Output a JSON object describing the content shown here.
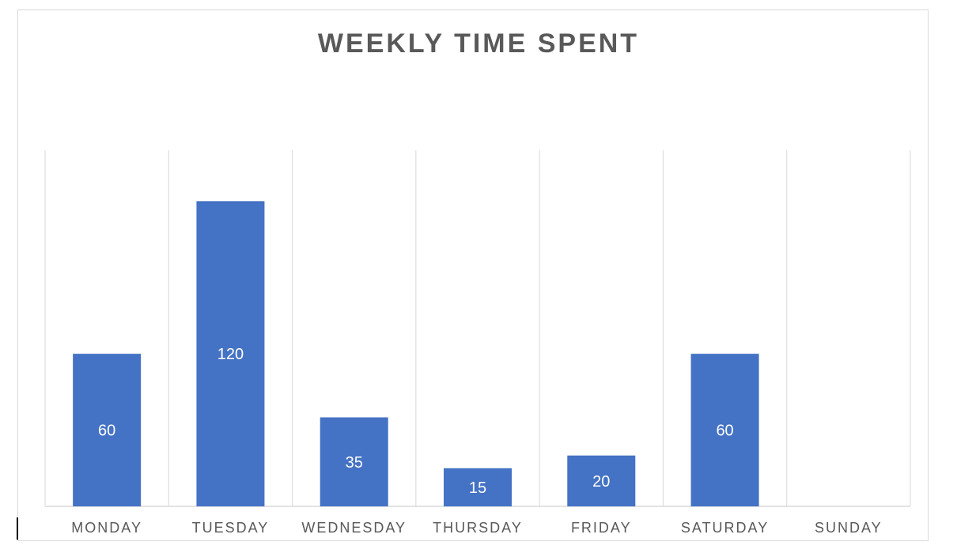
{
  "chart_data": {
    "type": "bar",
    "title": "WEEKLY TIME SPENT",
    "categories": [
      "MONDAY",
      "TUESDAY",
      "WEDNESDAY",
      "THURSDAY",
      "FRIDAY",
      "SATURDAY",
      "SUNDAY"
    ],
    "values": [
      60,
      120,
      35,
      15,
      20,
      60,
      0
    ],
    "data_labels": [
      "60",
      "120",
      "35",
      "15",
      "20",
      "60",
      ""
    ],
    "ylim": [
      0,
      140
    ],
    "xlabel": "",
    "ylabel": "",
    "grid": "vertical category separators",
    "legend": "none",
    "colors": {
      "bar": "#4472C4",
      "data_label": "#ffffff",
      "axis_label": "#595959",
      "gridline": "#d9d9d9",
      "title": "#595959"
    }
  }
}
